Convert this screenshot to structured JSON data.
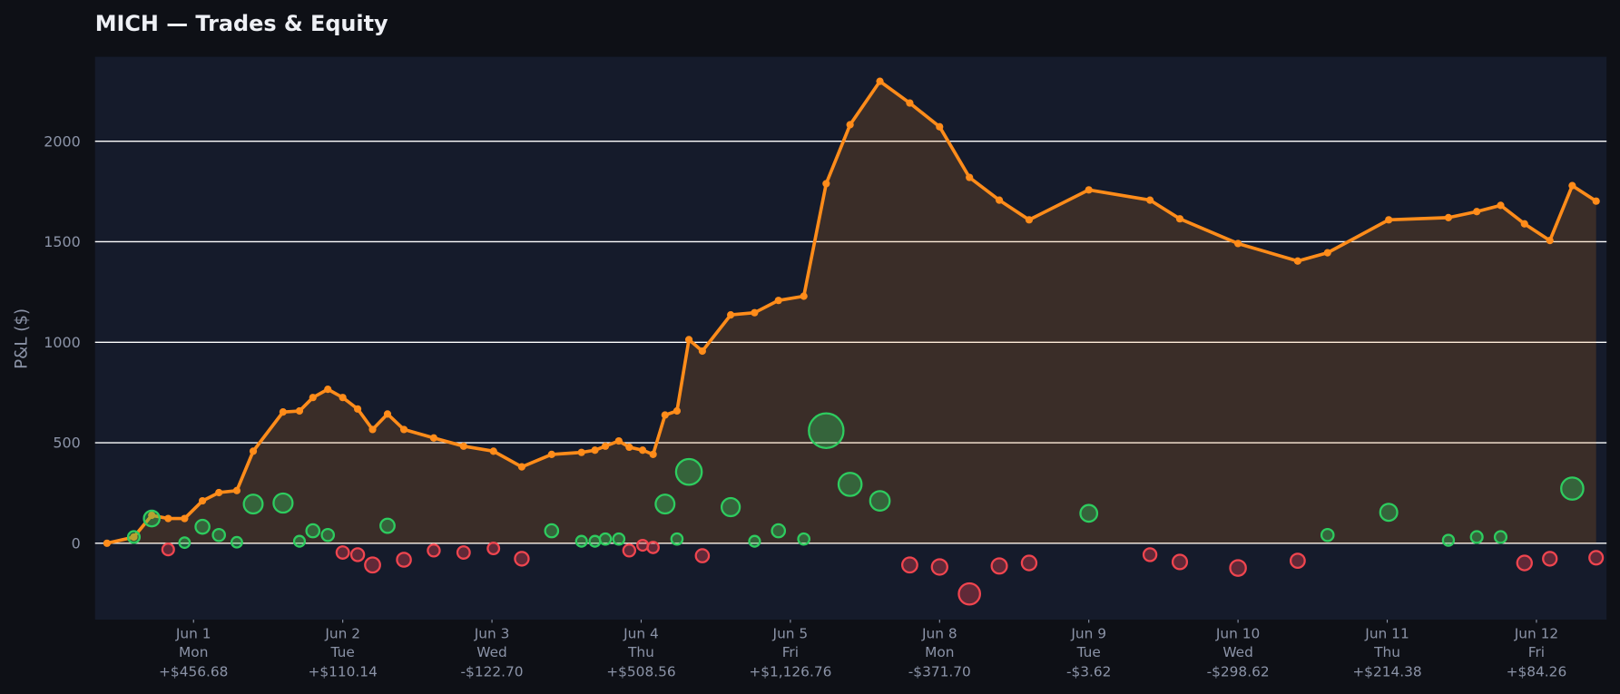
{
  "chart_data": {
    "type": "line",
    "title": "MICH — Trades & Equity",
    "y_label": "P&L ($)",
    "xlim": [
      -0.66,
      9.47
    ],
    "ylim": [
      -380,
      2420
    ],
    "yticks": [
      0,
      500,
      1000,
      1500,
      2000
    ],
    "grid": true,
    "xticks": [
      {
        "value": 0,
        "label": "Jun 1",
        "weekday": "Mon",
        "pnl": "+$456.68"
      },
      {
        "value": 1,
        "label": "Jun 2",
        "weekday": "Tue",
        "pnl": "+$110.14"
      },
      {
        "value": 2,
        "label": "Jun 3",
        "weekday": "Wed",
        "pnl": "-$122.70"
      },
      {
        "value": 3,
        "label": "Jun 4",
        "weekday": "Thu",
        "pnl": "+$508.56"
      },
      {
        "value": 4,
        "label": "Jun 5",
        "weekday": "Fri",
        "pnl": "+$1,126.76"
      },
      {
        "value": 5,
        "label": "Jun 8",
        "weekday": "Mon",
        "pnl": "-$371.70"
      },
      {
        "value": 6,
        "label": "Jun 9",
        "weekday": "Tue",
        "pnl": "-$3.62"
      },
      {
        "value": 7,
        "label": "Jun 10",
        "weekday": "Wed",
        "pnl": "-$298.62"
      },
      {
        "value": 8,
        "label": "Jun 11",
        "weekday": "Thu",
        "pnl": "+$214.38"
      },
      {
        "value": 9,
        "label": "Jun 12",
        "weekday": "Fri",
        "pnl": "+$84.26"
      }
    ],
    "series": [
      {
        "type": "line",
        "color": "#ff8c1a",
        "fill": "rgba(255,140,26,0.16)",
        "x": [
          -0.58,
          -0.4,
          -0.28,
          -0.17,
          -0.06,
          0.06,
          0.17,
          0.29,
          0.4,
          0.6,
          0.71,
          0.8,
          0.9,
          1.0,
          1.1,
          1.2,
          1.3,
          1.41,
          1.61,
          1.81,
          2.01,
          2.2,
          2.4,
          2.6,
          2.69,
          2.76,
          2.85,
          2.92,
          3.01,
          3.08,
          3.16,
          3.24,
          3.32,
          3.41,
          3.6,
          3.76,
          3.92,
          4.09,
          4.24,
          4.4,
          4.6,
          4.8,
          5.0,
          5.2,
          5.4,
          5.6,
          6.0,
          6.41,
          6.61,
          7.0,
          7.4,
          7.6,
          8.01,
          8.41,
          8.6,
          8.76,
          8.92,
          9.09,
          9.24,
          9.4
        ],
        "values": [
          0,
          31,
          139,
          123,
          123,
          211,
          252,
          262,
          458,
          653,
          658,
          725,
          766,
          725,
          668,
          566,
          643,
          566,
          524,
          483,
          458,
          380,
          442,
          452,
          463,
          483,
          509,
          478,
          463,
          442,
          638,
          658,
          1013,
          956,
          1136,
          1147,
          1208,
          1229,
          1789,
          2082,
          2298,
          2190,
          2072,
          1820,
          1707,
          1609,
          1758,
          1707,
          1614,
          1491,
          1404,
          1445,
          1609,
          1620,
          1650,
          1681,
          1589,
          1506,
          1779,
          1702
        ]
      },
      {
        "type": "scatter",
        "win_color": "#2ecc5f",
        "loss_color": "#f0454f",
        "x": [
          -0.4,
          -0.28,
          -0.17,
          -0.06,
          0.06,
          0.17,
          0.29,
          0.4,
          0.6,
          0.71,
          0.8,
          0.9,
          1.0,
          1.1,
          1.2,
          1.3,
          1.41,
          1.61,
          1.81,
          2.01,
          2.2,
          2.4,
          2.6,
          2.69,
          2.76,
          2.85,
          2.92,
          3.01,
          3.08,
          3.16,
          3.32,
          3.24,
          3.41,
          3.6,
          3.76,
          3.92,
          4.09,
          4.24,
          4.4,
          4.6,
          4.8,
          5.0,
          5.2,
          5.4,
          5.6,
          6.0,
          6.41,
          6.61,
          7.0,
          7.4,
          7.6,
          8.01,
          8.41,
          8.6,
          8.76,
          8.92,
          9.09,
          9.24,
          9.4
        ],
        "values": [
          31,
          123,
          -31,
          3,
          82,
          41,
          5,
          195,
          200,
          10,
          62,
          41,
          -46,
          -57,
          -108,
          87,
          -82,
          -36,
          -46,
          -26,
          -77,
          62,
          10,
          10,
          21,
          21,
          -36,
          -10,
          -21,
          195,
          355,
          21,
          -62,
          180,
          10,
          62,
          21,
          560,
          293,
          211,
          -108,
          -118,
          -252,
          -113,
          -98,
          149,
          -57,
          -93,
          -123,
          -87,
          41,
          154,
          15,
          31,
          31,
          -98,
          -77,
          272,
          -72
        ]
      }
    ]
  }
}
